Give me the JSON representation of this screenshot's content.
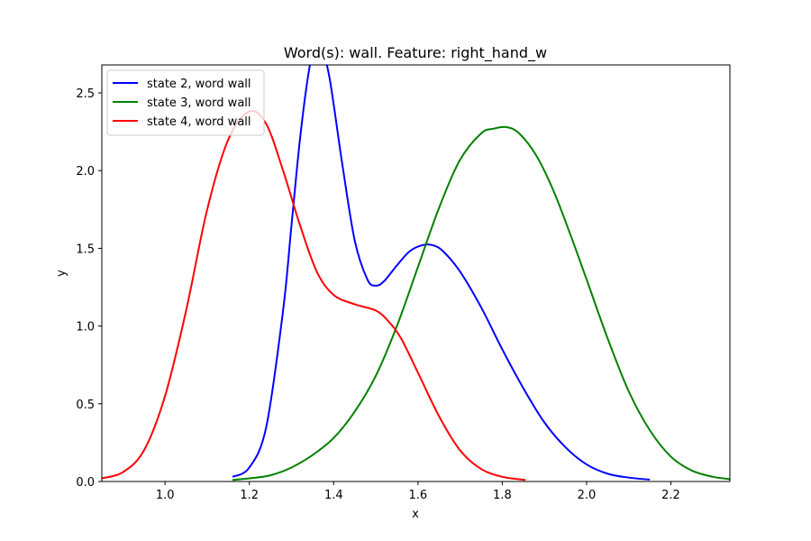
{
  "chart_data": {
    "type": "line",
    "title": "Word(s): wall. Feature: right_hand_w",
    "xlabel": "x",
    "ylabel": "y",
    "xlim": [
      0.85,
      2.34
    ],
    "ylim": [
      0.0,
      2.68
    ],
    "xticks": [
      "1.0",
      "1.2",
      "1.4",
      "1.6",
      "1.8",
      "2.0",
      "2.2"
    ],
    "xtick_values": [
      1.0,
      1.2,
      1.4,
      1.6,
      1.8,
      2.0,
      2.2
    ],
    "yticks": [
      "0.0",
      "0.5",
      "1.0",
      "1.5",
      "2.0",
      "2.5"
    ],
    "ytick_values": [
      0.0,
      0.5,
      1.0,
      1.5,
      2.0,
      2.5
    ],
    "grid": false,
    "legend_position": "top-left",
    "series": [
      {
        "name": "state 2, word wall",
        "color": "#0000ff",
        "x": [
          1.16,
          1.2,
          1.24,
          1.28,
          1.3,
          1.32,
          1.34,
          1.355,
          1.37,
          1.39,
          1.42,
          1.45,
          1.48,
          1.5,
          1.52,
          1.55,
          1.58,
          1.61,
          1.635,
          1.66,
          1.7,
          1.75,
          1.8,
          1.85,
          1.9,
          1.95,
          2.0,
          2.05,
          2.1,
          2.15
        ],
        "y": [
          0.03,
          0.09,
          0.35,
          1.1,
          1.65,
          2.2,
          2.62,
          2.8,
          2.79,
          2.6,
          2.05,
          1.55,
          1.3,
          1.26,
          1.29,
          1.39,
          1.48,
          1.52,
          1.52,
          1.48,
          1.35,
          1.12,
          0.85,
          0.6,
          0.38,
          0.22,
          0.11,
          0.05,
          0.025,
          0.012
        ]
      },
      {
        "name": "state 3, word wall",
        "color": "#008000",
        "x": [
          1.16,
          1.2,
          1.25,
          1.3,
          1.35,
          1.4,
          1.45,
          1.5,
          1.55,
          1.6,
          1.65,
          1.7,
          1.75,
          1.78,
          1.81,
          1.84,
          1.88,
          1.92,
          1.96,
          2.0,
          2.05,
          2.1,
          2.15,
          2.2,
          2.25,
          2.3,
          2.34
        ],
        "y": [
          0.01,
          0.02,
          0.04,
          0.09,
          0.17,
          0.28,
          0.45,
          0.68,
          1.0,
          1.38,
          1.76,
          2.07,
          2.24,
          2.27,
          2.28,
          2.24,
          2.1,
          1.88,
          1.6,
          1.3,
          0.92,
          0.58,
          0.33,
          0.16,
          0.07,
          0.03,
          0.015
        ]
      },
      {
        "name": "state 4, word wall",
        "color": "#ff0000",
        "x": [
          0.85,
          0.9,
          0.95,
          1.0,
          1.05,
          1.1,
          1.15,
          1.2,
          1.24,
          1.28,
          1.32,
          1.36,
          1.4,
          1.45,
          1.5,
          1.53,
          1.56,
          1.6,
          1.65,
          1.7,
          1.75,
          1.8,
          1.855
        ],
        "y": [
          0.02,
          0.06,
          0.2,
          0.55,
          1.1,
          1.75,
          2.2,
          2.38,
          2.3,
          2.0,
          1.65,
          1.35,
          1.2,
          1.14,
          1.1,
          1.03,
          0.92,
          0.7,
          0.42,
          0.2,
          0.08,
          0.03,
          0.01
        ]
      }
    ]
  }
}
